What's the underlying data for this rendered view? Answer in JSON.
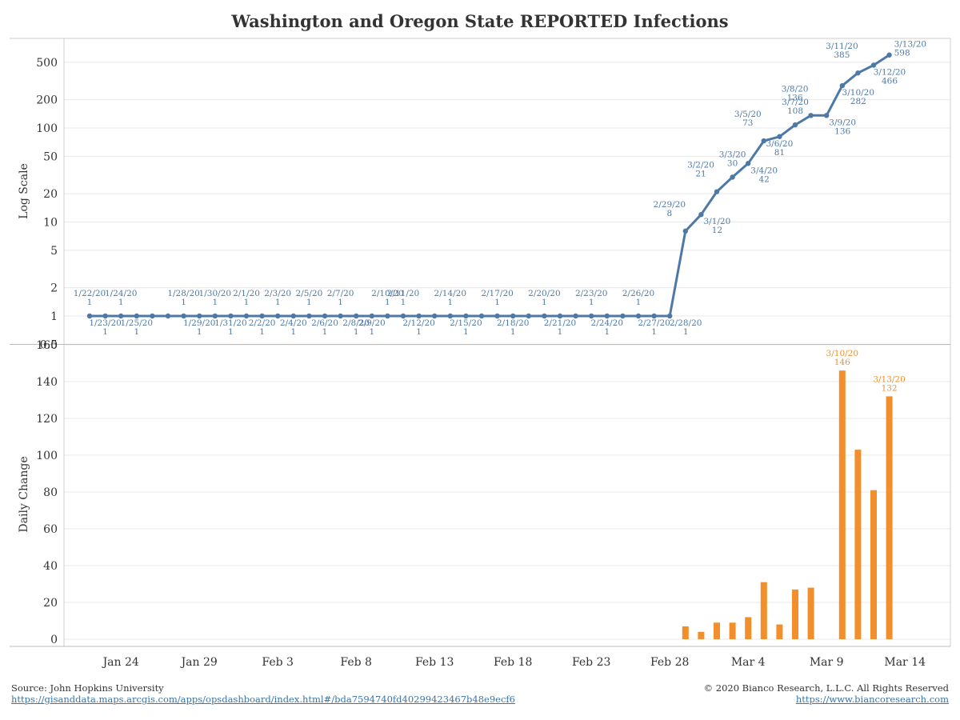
{
  "title": "Washington and Oregon State REPORTED Infections",
  "footer": {
    "source_label": "Source: John Hopkins University",
    "source_url": "https://gisanddata.maps.arcgis.com/apps/opsdashboard/index.html#/bda7594740fd40299423467b48e9ecf6",
    "copyright": "© 2020 Bianco Research, L.L.C. All Rights Reserved",
    "site_url": "https://www.biancoresearch.com"
  },
  "colors": {
    "line": "#4e79a7",
    "bars": "#f28e2b",
    "text": "#333333",
    "grid": "#e8e8e8"
  },
  "chart_data": [
    {
      "type": "line",
      "ylabel": "Log Scale",
      "yscale": "log",
      "yticks": [
        0.5,
        1,
        2,
        5,
        10,
        20,
        50,
        100,
        200,
        500
      ],
      "ytick_labels": [
        "0.5",
        "1",
        "2",
        "5",
        "10",
        "20",
        "50",
        "100",
        "200",
        "500"
      ],
      "grid": true,
      "x_start": "1/22/20",
      "x": [
        "1/22/20",
        "1/23/20",
        "1/24/20",
        "1/25/20",
        "1/26/20",
        "1/27/20",
        "1/28/20",
        "1/29/20",
        "1/30/20",
        "1/31/20",
        "2/1/20",
        "2/2/20",
        "2/3/20",
        "2/4/20",
        "2/5/20",
        "2/6/20",
        "2/7/20",
        "2/8/20",
        "2/9/20",
        "2/10/20",
        "2/11/20",
        "2/12/20",
        "2/13/20",
        "2/14/20",
        "2/15/20",
        "2/16/20",
        "2/17/20",
        "2/18/20",
        "2/19/20",
        "2/20/20",
        "2/21/20",
        "2/22/20",
        "2/23/20",
        "2/24/20",
        "2/25/20",
        "2/26/20",
        "2/27/20",
        "2/28/20",
        "2/29/20",
        "3/1/20",
        "3/2/20",
        "3/3/20",
        "3/4/20",
        "3/5/20",
        "3/6/20",
        "3/7/20",
        "3/8/20",
        "3/9/20",
        "3/10/20",
        "3/11/20",
        "3/12/20",
        "3/13/20"
      ],
      "series": [
        {
          "values": [
            1,
            1,
            1,
            1,
            1,
            1,
            1,
            1,
            1,
            1,
            1,
            1,
            1,
            1,
            1,
            1,
            1,
            1,
            1,
            1,
            1,
            1,
            1,
            1,
            1,
            1,
            1,
            1,
            1,
            1,
            1,
            1,
            1,
            1,
            1,
            1,
            1,
            1,
            8,
            12,
            21,
            30,
            42,
            73,
            81,
            108,
            136,
            136,
            282,
            385,
            466,
            598
          ]
        }
      ],
      "annotations": [
        {
          "date": "1/22/20",
          "value": "1",
          "pos": "above"
        },
        {
          "date": "1/23/20",
          "value": "1",
          "pos": "below"
        },
        {
          "date": "1/24/20",
          "value": "1",
          "pos": "above"
        },
        {
          "date": "1/25/20",
          "value": "1",
          "pos": "below"
        },
        {
          "date": "1/28/20",
          "value": "1",
          "pos": "above"
        },
        {
          "date": "1/29/20",
          "value": "1",
          "pos": "below"
        },
        {
          "date": "1/30/20",
          "value": "1",
          "pos": "above"
        },
        {
          "date": "1/31/20",
          "value": "1",
          "pos": "below"
        },
        {
          "date": "2/1/20",
          "value": "1",
          "pos": "above"
        },
        {
          "date": "2/2/20",
          "value": "1",
          "pos": "below"
        },
        {
          "date": "2/3/20",
          "value": "1",
          "pos": "above"
        },
        {
          "date": "2/4/20",
          "value": "1",
          "pos": "below"
        },
        {
          "date": "2/5/20",
          "value": "1",
          "pos": "above"
        },
        {
          "date": "2/6/20",
          "value": "1",
          "pos": "below"
        },
        {
          "date": "2/7/20",
          "value": "1",
          "pos": "above"
        },
        {
          "date": "2/8/20",
          "value": "1",
          "pos": "below"
        },
        {
          "date": "2/9/20",
          "value": "1",
          "pos": "below"
        },
        {
          "date": "2/10/20",
          "value": "1",
          "pos": "above"
        },
        {
          "date": "2/11/20",
          "value": "1",
          "pos": "above"
        },
        {
          "date": "2/12/20",
          "value": "1",
          "pos": "below"
        },
        {
          "date": "2/14/20",
          "value": "1",
          "pos": "above"
        },
        {
          "date": "2/15/20",
          "value": "1",
          "pos": "below"
        },
        {
          "date": "2/17/20",
          "value": "1",
          "pos": "above"
        },
        {
          "date": "2/18/20",
          "value": "1",
          "pos": "below"
        },
        {
          "date": "2/20/20",
          "value": "1",
          "pos": "above"
        },
        {
          "date": "2/21/20",
          "value": "1",
          "pos": "below"
        },
        {
          "date": "2/23/20",
          "value": "1",
          "pos": "above"
        },
        {
          "date": "2/24/20",
          "value": "1",
          "pos": "below"
        },
        {
          "date": "2/26/20",
          "value": "1",
          "pos": "above"
        },
        {
          "date": "2/27/20",
          "value": "1",
          "pos": "below"
        },
        {
          "date": "2/28/20",
          "value": "1",
          "pos": "below-right"
        },
        {
          "date": "2/29/20",
          "value": "8",
          "pos": "above-left"
        },
        {
          "date": "3/1/20",
          "value": "12",
          "pos": "below-right"
        },
        {
          "date": "3/2/20",
          "value": "21",
          "pos": "above-left"
        },
        {
          "date": "3/3/20",
          "value": "30",
          "pos": "above"
        },
        {
          "date": "3/4/20",
          "value": "42",
          "pos": "below-right"
        },
        {
          "date": "3/5/20",
          "value": "73",
          "pos": "above-left"
        },
        {
          "date": "3/6/20",
          "value": "81",
          "pos": "below"
        },
        {
          "date": "3/7/20",
          "value": "108",
          "pos": "above"
        },
        {
          "date": "3/8/20",
          "value": "136",
          "pos": "above-left"
        },
        {
          "date": "3/9/20",
          "value": "136",
          "pos": "below-right"
        },
        {
          "date": "3/10/20",
          "value": "282",
          "pos": "below-right"
        },
        {
          "date": "3/11/20",
          "value": "385",
          "pos": "above-left"
        },
        {
          "date": "3/12/20",
          "value": "466",
          "pos": "below-right"
        },
        {
          "date": "3/13/20",
          "value": "598",
          "pos": "right"
        }
      ]
    },
    {
      "type": "bar",
      "ylabel": "Daily Change",
      "yticks": [
        0,
        20,
        40,
        60,
        80,
        100,
        120,
        140,
        160
      ],
      "ylim": [
        0,
        160
      ],
      "grid": true,
      "x": [
        "2/29/20",
        "3/1/20",
        "3/2/20",
        "3/3/20",
        "3/4/20",
        "3/5/20",
        "3/6/20",
        "3/7/20",
        "3/8/20",
        "3/9/20",
        "3/10/20",
        "3/11/20",
        "3/12/20",
        "3/13/20"
      ],
      "values": [
        7,
        4,
        9,
        9,
        12,
        31,
        8,
        27,
        28,
        0,
        146,
        103,
        81,
        132
      ],
      "annotations": [
        {
          "date": "3/10/20",
          "value": "146"
        },
        {
          "date": "3/13/20",
          "value": "132"
        }
      ]
    }
  ],
  "x_axis": {
    "tick_labels": [
      "Jan 24",
      "Jan 29",
      "Feb 3",
      "Feb 8",
      "Feb 13",
      "Feb 18",
      "Feb 23",
      "Feb 28",
      "Mar 4",
      "Mar 9",
      "Mar 14"
    ],
    "tick_dates": [
      "1/24/20",
      "1/29/20",
      "2/3/20",
      "2/8/20",
      "2/13/20",
      "2/18/20",
      "2/23/20",
      "2/28/20",
      "3/4/20",
      "3/9/20",
      "3/14/20"
    ]
  }
}
